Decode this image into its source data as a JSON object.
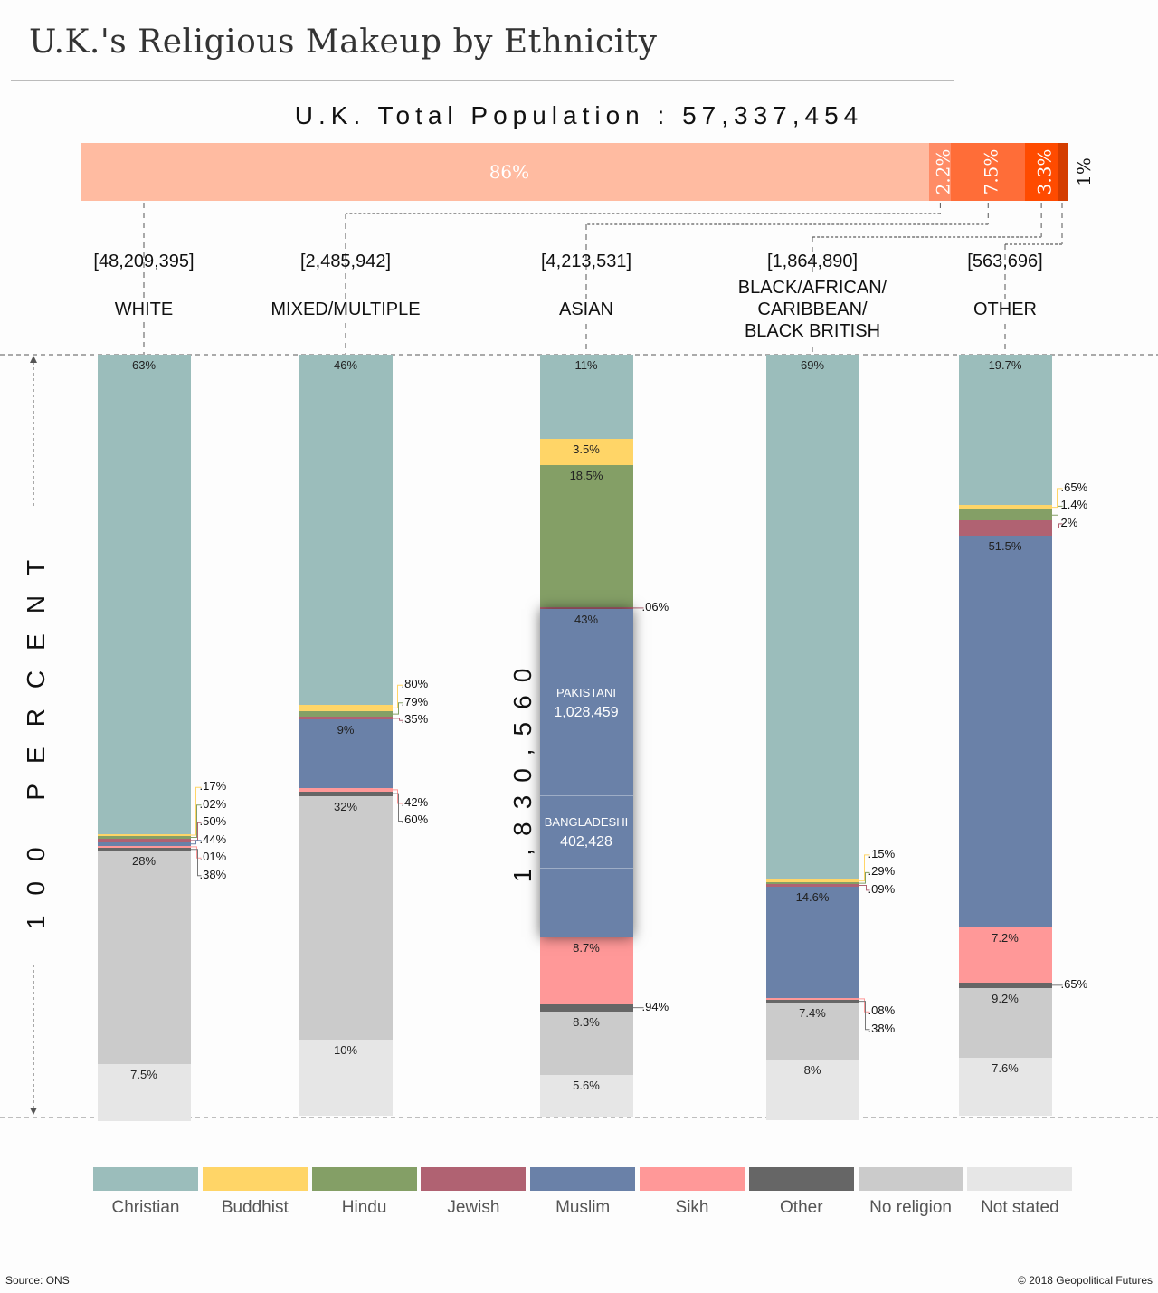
{
  "title": "U.K.'s Religious Makeup by Ethnicity",
  "total_label": "U.K. Total Population : 57,337,454",
  "y_axis_label": "100 PERCENT",
  "source": "Source: ONS",
  "credit": "© 2018 Geopolitical Futures",
  "colors": {
    "Christian": "#9bbdbb",
    "Buddhist": "#ffd567",
    "Hindu": "#849f66",
    "Jewish": "#b06272",
    "Muslim": "#6a81a8",
    "Sikh": "#ff9898",
    "Other": "#666666",
    "No religion": "#cbcbcb",
    "Not stated": "#e6e6e6"
  },
  "chart_data": {
    "type": "bar",
    "subtype": "100% stacked bar",
    "title": "U.K.'s Religious Makeup by Ethnicity",
    "subtitle": "U.K. Total Population : 57,337,454",
    "ylabel": "100 PERCENT",
    "ylim": [
      0,
      100
    ],
    "legend_position": "bottom",
    "legend": [
      "Christian",
      "Buddhist",
      "Hindu",
      "Jewish",
      "Muslim",
      "Sikh",
      "Other",
      "No religion",
      "Not stated"
    ],
    "population_share": {
      "title": "U.K. Total Population",
      "total": "57,337,454",
      "segments": [
        {
          "group": "WHITE",
          "percent": 86,
          "label": "86%",
          "color": "#ffbba1"
        },
        {
          "group": "MIXED/MULTIPLE",
          "percent": 2.2,
          "label": "2.2%",
          "color": "#ff8c66"
        },
        {
          "group": "ASIAN",
          "percent": 7.5,
          "label": "7.5%",
          "color": "#ff6d38"
        },
        {
          "group": "BLACK/AFRICAN/CARIBBEAN/BLACK BRITISH",
          "percent": 3.3,
          "label": "3.3%",
          "color": "#ff4b00"
        },
        {
          "group": "OTHER",
          "percent": 1,
          "label": "1%",
          "color": "#d43d00"
        }
      ]
    },
    "categories": [
      "WHITE",
      "MIXED/MULTIPLE",
      "ASIAN",
      "BLACK/AFRICAN/CARIBBEAN/BLACK BRITISH",
      "OTHER"
    ],
    "groups": [
      {
        "name": "WHITE",
        "name_lines": [
          "WHITE"
        ],
        "population": "[48,209,395]",
        "segments": [
          {
            "religion": "Christian",
            "value": 63,
            "label": "63%"
          },
          {
            "religion": "Buddhist",
            "value": 0.17,
            "label": ".17%",
            "callout": true
          },
          {
            "religion": "Hindu",
            "value": 0.02,
            "label": ".02%",
            "callout": true
          },
          {
            "religion": "Jewish",
            "value": 0.5,
            "label": ".50%",
            "callout": true
          },
          {
            "religion": "Muslim",
            "value": 0.44,
            "label": ".44%",
            "callout": true
          },
          {
            "religion": "Sikh",
            "value": 0.01,
            "label": ".01%",
            "callout": true
          },
          {
            "religion": "Other",
            "value": 0.38,
            "label": ".38%",
            "callout": true
          },
          {
            "religion": "No religion",
            "value": 28,
            "label": "28%"
          },
          {
            "religion": "Not stated",
            "value": 7.5,
            "label": "7.5%"
          }
        ]
      },
      {
        "name": "MIXED/MULTIPLE",
        "name_lines": [
          "MIXED/MULTIPLE"
        ],
        "population": "[2,485,942]",
        "segments": [
          {
            "religion": "Christian",
            "value": 46,
            "label": "46%"
          },
          {
            "religion": "Buddhist",
            "value": 0.8,
            "label": ".80%",
            "callout": true
          },
          {
            "religion": "Hindu",
            "value": 0.79,
            "label": ".79%",
            "callout": true
          },
          {
            "religion": "Jewish",
            "value": 0.35,
            "label": ".35%",
            "callout": true
          },
          {
            "religion": "Muslim",
            "value": 9,
            "label": "9%"
          },
          {
            "religion": "Sikh",
            "value": 0.42,
            "label": ".42%",
            "callout": true
          },
          {
            "religion": "Other",
            "value": 0.6,
            "label": ".60%",
            "callout": true
          },
          {
            "religion": "No religion",
            "value": 32,
            "label": "32%"
          },
          {
            "religion": "Not stated",
            "value": 10,
            "label": "10%"
          }
        ]
      },
      {
        "name": "ASIAN",
        "name_lines": [
          "ASIAN"
        ],
        "population": "[4,213,531]",
        "segments": [
          {
            "religion": "Christian",
            "value": 11,
            "label": "11%"
          },
          {
            "religion": "Buddhist",
            "value": 3.5,
            "label": "3.5%"
          },
          {
            "religion": "Hindu",
            "value": 18.5,
            "label": "18.5%"
          },
          {
            "religion": "Jewish",
            "value": 0.06,
            "label": ".06%",
            "callout": true
          },
          {
            "religion": "Muslim",
            "value": 43,
            "label": "43%"
          },
          {
            "religion": "Sikh",
            "value": 8.7,
            "label": "8.7%"
          },
          {
            "religion": "Other",
            "value": 0.94,
            "label": ".94%",
            "callout": true
          },
          {
            "religion": "No religion",
            "value": 8.3,
            "label": "8.3%"
          },
          {
            "religion": "Not stated",
            "value": 5.6,
            "label": "5.6%"
          }
        ],
        "muslim_detail": {
          "total": "1,830,560",
          "subgroups": [
            {
              "name": "PAKISTANI",
              "population": "1,028,459"
            },
            {
              "name": "BANGLADESHI",
              "population": "402,428"
            }
          ]
        }
      },
      {
        "name": "BLACK/AFRICAN/CARIBBEAN/BLACK BRITISH",
        "name_lines": [
          "BLACK/AFRICAN/",
          "CARIBBEAN/",
          "BLACK BRITISH"
        ],
        "population": "[1,864,890]",
        "segments": [
          {
            "religion": "Christian",
            "value": 69,
            "label": "69%"
          },
          {
            "religion": "Buddhist",
            "value": 0.15,
            "label": ".15%",
            "callout": true
          },
          {
            "religion": "Hindu",
            "value": 0.29,
            "label": ".29%",
            "callout": true
          },
          {
            "religion": "Jewish",
            "value": 0.09,
            "label": ".09%",
            "callout": true
          },
          {
            "religion": "Muslim",
            "value": 14.6,
            "label": "14.6%"
          },
          {
            "religion": "Sikh",
            "value": 0.08,
            "label": ".08%",
            "callout": true
          },
          {
            "religion": "Other",
            "value": 0.38,
            "label": ".38%",
            "callout": true
          },
          {
            "religion": "No religion",
            "value": 7.4,
            "label": "7.4%"
          },
          {
            "religion": "Not stated",
            "value": 8,
            "label": "8%"
          }
        ]
      },
      {
        "name": "OTHER",
        "name_lines": [
          "OTHER"
        ],
        "population": "[563,696]",
        "segments": [
          {
            "religion": "Christian",
            "value": 19.7,
            "label": "19.7%"
          },
          {
            "religion": "Buddhist",
            "value": 0.65,
            "label": ".65%",
            "callout": true
          },
          {
            "religion": "Hindu",
            "value": 1.4,
            "label": "1.4%",
            "callout": true
          },
          {
            "religion": "Jewish",
            "value": 2,
            "label": "2%",
            "callout": true
          },
          {
            "religion": "Muslim",
            "value": 51.5,
            "label": "51.5%"
          },
          {
            "religion": "Sikh",
            "value": 7.2,
            "label": "7.2%"
          },
          {
            "religion": "Other",
            "value": 0.65,
            "label": ".65%",
            "callout": true
          },
          {
            "religion": "No religion",
            "value": 9.2,
            "label": "9.2%"
          },
          {
            "religion": "Not stated",
            "value": 7.6,
            "label": "7.6%"
          }
        ]
      }
    ]
  }
}
